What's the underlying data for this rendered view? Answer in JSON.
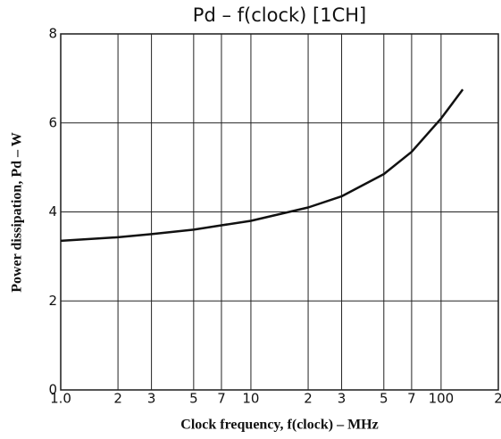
{
  "chart_data": {
    "type": "line",
    "title": "Pd – f(clock) [1CH]",
    "x_label": "Clock frequency, f(clock) – MHz",
    "y_label": "Power dissipation, Pd – W",
    "x": [
      1,
      2,
      3,
      5,
      7,
      10,
      20,
      30,
      50,
      70,
      100,
      130
    ],
    "values": [
      3.35,
      3.43,
      3.5,
      3.6,
      3.7,
      3.8,
      4.1,
      4.35,
      4.85,
      5.35,
      6.1,
      6.75
    ],
    "color": "#111111",
    "x_log": true,
    "xlim": [
      1,
      200
    ],
    "xticks": [
      {
        "value": 1,
        "label": "1.0"
      },
      2,
      3,
      5,
      7,
      10,
      {
        "value": 20,
        "label": "2"
      },
      {
        "value": 30,
        "label": "3"
      },
      {
        "value": 50,
        "label": "5"
      },
      {
        "value": 70,
        "label": "7"
      },
      100,
      {
        "value": 200,
        "label": "2"
      }
    ],
    "ylim": [
      0,
      8
    ],
    "yticks": [
      0,
      2,
      4,
      6,
      8
    ],
    "grid": true
  }
}
